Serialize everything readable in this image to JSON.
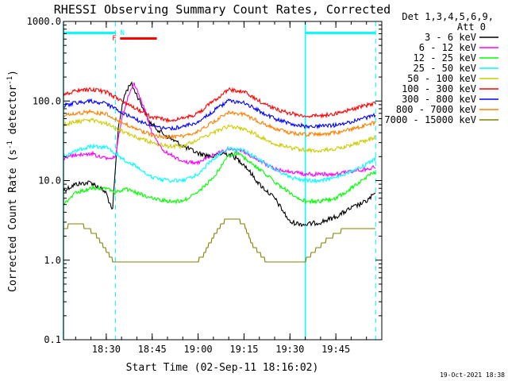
{
  "chart_data": {
    "type": "line",
    "title": "RHESSI Observing Summary Count Rates, Corrected",
    "xlabel": "Start Time (02-Sep-11 18:16:02)",
    "ylabel_parts": [
      "Corrected Count Rate (s",
      "-1",
      " detector",
      "-1",
      ")"
    ],
    "y_scale": "log",
    "ylim": [
      0.1,
      1000
    ],
    "y_ticks": [
      "0.1",
      "1.0",
      "10.0",
      "100.0",
      "1000.0"
    ],
    "x_range": [
      "18:16:02",
      "20:00:00"
    ],
    "x_ticks": [
      "18:30",
      "18:45",
      "19:00",
      "19:15",
      "19:30",
      "19:45"
    ],
    "legend_header": [
      "Det 1,3,4,5,6,9,",
      "Att 0"
    ],
    "legend_placement": "top-right, outside plot",
    "flags": {
      "N_label": "N",
      "F_label": "F",
      "night_intervals": [
        [
          "18:16",
          "18:33"
        ],
        [
          "19:35",
          "19:58"
        ]
      ],
      "flare_interval": [
        "18:34",
        "18:46"
      ],
      "dashed_markers": [
        "18:33",
        "19:58"
      ],
      "solid_markers": [
        "18:16",
        "19:35"
      ]
    },
    "series": [
      {
        "name": "3 - 6 keV",
        "color": "#000000",
        "points": [
          [
            "18:16",
            7.5
          ],
          [
            "18:20",
            9
          ],
          [
            "18:25",
            9.5
          ],
          [
            "18:28",
            8
          ],
          [
            "18:30",
            7
          ],
          [
            "18:32",
            4
          ],
          [
            "18:34",
            50
          ],
          [
            "18:36",
            120
          ],
          [
            "18:38",
            170
          ],
          [
            "18:41",
            100
          ],
          [
            "18:44",
            55
          ],
          [
            "18:48",
            40
          ],
          [
            "18:52",
            32
          ],
          [
            "18:56",
            26
          ],
          [
            "19:00",
            22
          ],
          [
            "19:05",
            20
          ],
          [
            "19:08",
            22
          ],
          [
            "19:11",
            21
          ],
          [
            "19:15",
            16
          ],
          [
            "19:20",
            9
          ],
          [
            "19:25",
            6
          ],
          [
            "19:28",
            4
          ],
          [
            "19:30",
            3
          ],
          [
            "19:35",
            2.8
          ],
          [
            "19:40",
            3
          ],
          [
            "19:45",
            3.5
          ],
          [
            "19:50",
            4.5
          ],
          [
            "19:55",
            5.5
          ],
          [
            "19:58",
            7
          ]
        ]
      },
      {
        "name": "6 - 12 keV",
        "color": "#ff00ff",
        "points": [
          [
            "18:16",
            19
          ],
          [
            "18:20",
            21
          ],
          [
            "18:25",
            22
          ],
          [
            "18:28",
            20
          ],
          [
            "18:31",
            19
          ],
          [
            "18:33",
            20
          ],
          [
            "18:35",
            60
          ],
          [
            "18:37",
            110
          ],
          [
            "18:39",
            170
          ],
          [
            "18:42",
            90
          ],
          [
            "18:45",
            40
          ],
          [
            "18:48",
            25
          ],
          [
            "18:52",
            20
          ],
          [
            "18:56",
            17
          ],
          [
            "19:00",
            17
          ],
          [
            "19:05",
            21
          ],
          [
            "19:10",
            25
          ],
          [
            "19:15",
            23
          ],
          [
            "19:20",
            18
          ],
          [
            "19:25",
            14
          ],
          [
            "19:30",
            13
          ],
          [
            "19:35",
            12
          ],
          [
            "19:40",
            12
          ],
          [
            "19:45",
            12
          ],
          [
            "19:50",
            13
          ],
          [
            "19:55",
            14
          ],
          [
            "19:58",
            15
          ]
        ]
      },
      {
        "name": "12 - 25 keV",
        "color": "#00ff00",
        "points": [
          [
            "18:16",
            5
          ],
          [
            "18:20",
            7
          ],
          [
            "18:25",
            8
          ],
          [
            "18:30",
            8
          ],
          [
            "18:33",
            7
          ],
          [
            "18:36",
            8
          ],
          [
            "18:40",
            7
          ],
          [
            "18:45",
            6
          ],
          [
            "18:50",
            5.5
          ],
          [
            "18:55",
            5.5
          ],
          [
            "19:00",
            7
          ],
          [
            "19:05",
            11
          ],
          [
            "19:10",
            21
          ],
          [
            "19:13",
            22
          ],
          [
            "19:18",
            16
          ],
          [
            "19:22",
            12
          ],
          [
            "19:26",
            9
          ],
          [
            "19:30",
            7
          ],
          [
            "19:35",
            5.5
          ],
          [
            "19:40",
            5.5
          ],
          [
            "19:45",
            6
          ],
          [
            "19:50",
            8
          ],
          [
            "19:55",
            11
          ],
          [
            "19:58",
            13
          ]
        ]
      },
      {
        "name": "25 - 50 keV",
        "color": "#00ffff",
        "points": [
          [
            "18:16",
            20
          ],
          [
            "18:20",
            24
          ],
          [
            "18:25",
            27
          ],
          [
            "18:30",
            26
          ],
          [
            "18:33",
            22
          ],
          [
            "18:36",
            18
          ],
          [
            "18:40",
            15
          ],
          [
            "18:45",
            11
          ],
          [
            "18:50",
            10
          ],
          [
            "18:55",
            10
          ],
          [
            "19:00",
            12
          ],
          [
            "19:05",
            19
          ],
          [
            "19:10",
            25
          ],
          [
            "19:15",
            24
          ],
          [
            "19:20",
            18
          ],
          [
            "19:25",
            14
          ],
          [
            "19:30",
            11
          ],
          [
            "19:35",
            10
          ],
          [
            "19:40",
            10
          ],
          [
            "19:45",
            11
          ],
          [
            "19:50",
            13
          ],
          [
            "19:55",
            16
          ],
          [
            "19:58",
            19
          ]
        ]
      },
      {
        "name": "50 - 100 keV",
        "color": "#cccc00",
        "points": [
          [
            "18:16",
            50
          ],
          [
            "18:20",
            55
          ],
          [
            "18:25",
            58
          ],
          [
            "18:30",
            52
          ],
          [
            "18:35",
            42
          ],
          [
            "18:40",
            35
          ],
          [
            "18:45",
            30
          ],
          [
            "18:50",
            27
          ],
          [
            "18:55",
            27
          ],
          [
            "19:00",
            32
          ],
          [
            "19:05",
            40
          ],
          [
            "19:10",
            48
          ],
          [
            "19:15",
            45
          ],
          [
            "19:20",
            36
          ],
          [
            "19:25",
            29
          ],
          [
            "19:30",
            26
          ],
          [
            "19:35",
            24
          ],
          [
            "19:40",
            24
          ],
          [
            "19:45",
            25
          ],
          [
            "19:50",
            28
          ],
          [
            "19:55",
            32
          ],
          [
            "19:58",
            35
          ]
        ]
      },
      {
        "name": "100 - 300 keV",
        "color": "#ff0000",
        "points": [
          [
            "18:16",
            120
          ],
          [
            "18:20",
            135
          ],
          [
            "18:25",
            140
          ],
          [
            "18:30",
            130
          ],
          [
            "18:35",
            100
          ],
          [
            "18:40",
            80
          ],
          [
            "18:45",
            62
          ],
          [
            "18:50",
            58
          ],
          [
            "18:55",
            60
          ],
          [
            "19:00",
            70
          ],
          [
            "19:05",
            100
          ],
          [
            "19:10",
            140
          ],
          [
            "19:15",
            130
          ],
          [
            "19:20",
            100
          ],
          [
            "19:25",
            80
          ],
          [
            "19:30",
            70
          ],
          [
            "19:35",
            65
          ],
          [
            "19:40",
            65
          ],
          [
            "19:45",
            70
          ],
          [
            "19:50",
            78
          ],
          [
            "19:55",
            88
          ],
          [
            "19:58",
            95
          ]
        ]
      },
      {
        "name": "300 - 800 keV",
        "color": "#0000ff",
        "points": [
          [
            "18:16",
            88
          ],
          [
            "18:20",
            95
          ],
          [
            "18:25",
            100
          ],
          [
            "18:30",
            92
          ],
          [
            "18:35",
            72
          ],
          [
            "18:40",
            58
          ],
          [
            "18:45",
            48
          ],
          [
            "18:50",
            45
          ],
          [
            "18:55",
            47
          ],
          [
            "19:00",
            55
          ],
          [
            "19:05",
            75
          ],
          [
            "19:10",
            100
          ],
          [
            "19:15",
            95
          ],
          [
            "19:20",
            75
          ],
          [
            "19:25",
            60
          ],
          [
            "19:30",
            52
          ],
          [
            "19:35",
            48
          ],
          [
            "19:40",
            48
          ],
          [
            "19:45",
            50
          ],
          [
            "19:50",
            55
          ],
          [
            "19:55",
            62
          ],
          [
            "19:58",
            66
          ]
        ]
      },
      {
        "name": "800 - 7000 keV",
        "color": "#ff8000",
        "points": [
          [
            "18:16",
            65
          ],
          [
            "18:20",
            70
          ],
          [
            "18:25",
            73
          ],
          [
            "18:30",
            68
          ],
          [
            "18:35",
            54
          ],
          [
            "18:40",
            44
          ],
          [
            "18:45",
            37
          ],
          [
            "18:50",
            35
          ],
          [
            "18:55",
            36
          ],
          [
            "19:00",
            42
          ],
          [
            "19:05",
            55
          ],
          [
            "19:10",
            72
          ],
          [
            "19:15",
            68
          ],
          [
            "19:20",
            55
          ],
          [
            "19:25",
            45
          ],
          [
            "19:30",
            40
          ],
          [
            "19:35",
            38
          ],
          [
            "19:40",
            38
          ],
          [
            "19:45",
            40
          ],
          [
            "19:50",
            44
          ],
          [
            "19:55",
            50
          ],
          [
            "19:58",
            54
          ]
        ]
      },
      {
        "name": "7000 - 15000 keV",
        "color": "#808000",
        "points": [
          [
            "18:16",
            2.5
          ],
          [
            "18:20",
            3
          ],
          [
            "18:24",
            2.5
          ],
          [
            "18:27",
            2
          ],
          [
            "18:30",
            1.3
          ],
          [
            "18:32",
            1
          ],
          [
            "18:36",
            1
          ],
          [
            "18:45",
            1
          ],
          [
            "18:55",
            1
          ],
          [
            "19:00",
            1
          ],
          [
            "19:02",
            1.2
          ],
          [
            "19:05",
            2
          ],
          [
            "19:08",
            3
          ],
          [
            "19:12",
            3.5
          ],
          [
            "19:15",
            2.8
          ],
          [
            "19:18",
            1.5
          ],
          [
            "19:22",
            1
          ],
          [
            "19:35",
            1
          ],
          [
            "19:38",
            1.3
          ],
          [
            "19:42",
            1.8
          ],
          [
            "19:46",
            2.3
          ],
          [
            "19:50",
            2.5
          ],
          [
            "19:55",
            2.6
          ],
          [
            "19:58",
            2.6
          ]
        ]
      }
    ]
  },
  "footer": {
    "timestamp": "19-Oct-2021 18:38"
  }
}
